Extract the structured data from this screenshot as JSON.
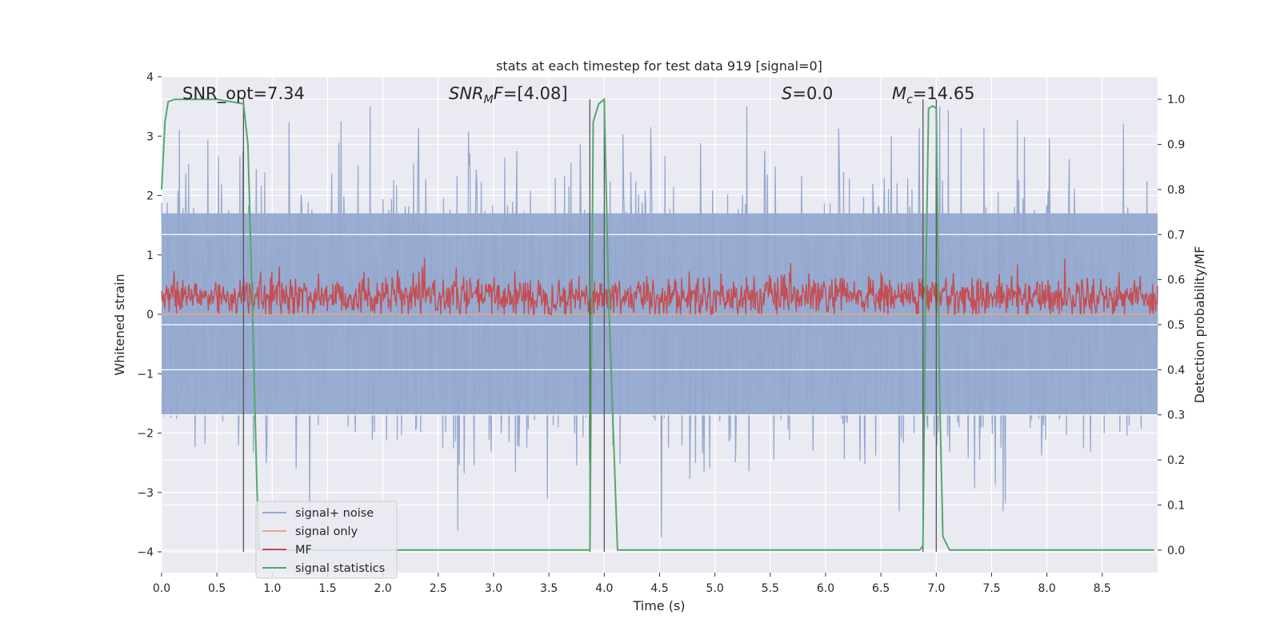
{
  "chart_data": {
    "type": "line",
    "title": "stats at each timestep for test data 919 [signal=0]",
    "xlabel": "Time (s)",
    "ylabel_left": "Whitened strain",
    "ylabel_right": "Detection probability/MF",
    "xlim": [
      0.0,
      9.0
    ],
    "ylim_left": [
      -4.35,
      4.0
    ],
    "ylim_right": [
      -0.05,
      1.05
    ],
    "xticks": [
      "0.0",
      "0.5",
      "1.0",
      "1.5",
      "2.0",
      "2.5",
      "3.0",
      "3.5",
      "4.0",
      "4.5",
      "5.0",
      "5.5",
      "6.0",
      "6.5",
      "7.0",
      "7.5",
      "8.0",
      "8.5"
    ],
    "yticks_left": [
      "4",
      "3",
      "2",
      "1",
      "0",
      "−1",
      "−2",
      "−3",
      "−4"
    ],
    "yticks_right": [
      "1.0",
      "0.9",
      "0.8",
      "0.7",
      "0.6",
      "0.5",
      "0.4",
      "0.3",
      "0.2",
      "0.1",
      "0.0"
    ],
    "grid": true,
    "legend_position": "lower-left",
    "annotations": {
      "snr_opt": "SNR_opt=7.34",
      "snr_mf": "=[4.08]",
      "s_value": "=0.0",
      "mc_value": "=14.65"
    },
    "series": [
      {
        "name": "signal+ noise",
        "color": "#95a9cf",
        "kind": "noise",
        "center": 0.0,
        "typical_range": [
          -1.7,
          1.7
        ],
        "peak_range": [
          -4.0,
          3.5
        ]
      },
      {
        "name": "signal only",
        "color": "#e8a986",
        "kind": "flat",
        "value": 0.0
      },
      {
        "name": "MF",
        "color": "#c44e52",
        "kind": "noise",
        "center": 0.3,
        "typical_range": [
          0.05,
          0.6
        ],
        "peak_range": [
          0.0,
          1.0
        ]
      },
      {
        "name": "signal statistics",
        "color": "#55a868",
        "axis": "right",
        "x": [
          0.0,
          0.03,
          0.06,
          0.12,
          0.5,
          0.74,
          0.78,
          0.82,
          0.86,
          0.88,
          3.6,
          3.87,
          3.9,
          3.95,
          4.0,
          4.04,
          4.12,
          6.85,
          6.88,
          6.9,
          6.93,
          6.97,
          7.0,
          7.03,
          7.06,
          7.12,
          8.97
        ],
        "y": [
          0.8,
          0.95,
          0.995,
          1.0,
          1.0,
          0.99,
          0.9,
          0.55,
          0.15,
          0.0,
          0.0,
          0.0,
          0.95,
          0.99,
          1.0,
          0.55,
          0.0,
          0.0,
          0.01,
          0.5,
          0.98,
          0.985,
          0.98,
          0.35,
          0.03,
          0.0,
          0.0
        ]
      }
    ],
    "vertical_markers": [
      {
        "x": 0.74,
        "y_range": [
          -4.0,
          3.62
        ]
      },
      {
        "x": 3.87,
        "y_range": [
          -4.0,
          3.62
        ]
      },
      {
        "x": 4.0,
        "y_range": [
          -4.0,
          3.62
        ]
      },
      {
        "x": 6.88,
        "y_range": [
          -4.0,
          3.62
        ]
      },
      {
        "x": 7.0,
        "y_range": [
          -4.0,
          3.62
        ]
      }
    ]
  }
}
